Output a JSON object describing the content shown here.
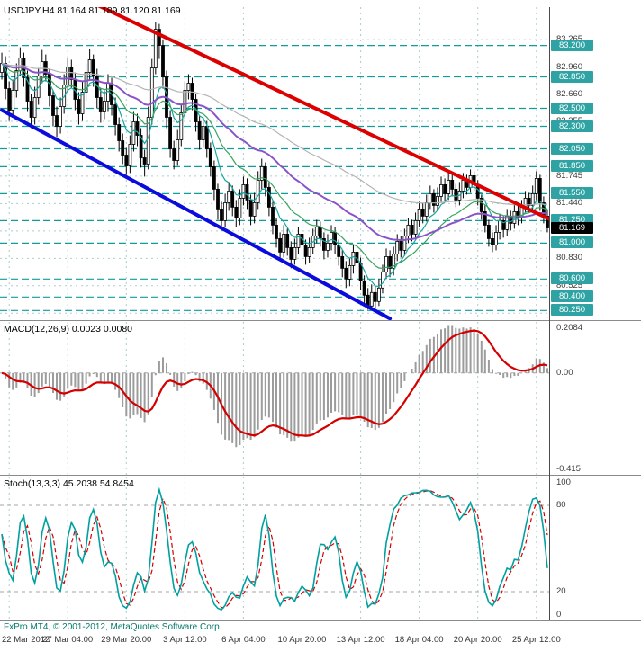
{
  "footer": {
    "copyright": "FxPro MT4, © 2001-2012, MetaQuotes Software Corp."
  },
  "colors": {
    "background": "#ffffff",
    "grid": "#a9cdcd",
    "level_line": "#0f9d9d",
    "badge": "#2fa3a3",
    "current_badge": "#000000",
    "bull": "#ffffff",
    "bear": "#000000",
    "candle_outline": "#000000",
    "trend_resistance": "#dd0000",
    "trend_support": "#0b0bdc",
    "macd_histogram": "#9c9c9c",
    "macd_signal": "#d40000",
    "stoch_main": "#00a0a0",
    "stoch_signal": "#d40000",
    "copyright": "#007a6a"
  },
  "chart_data": [
    {
      "type": "candlestick",
      "symbol": "USDJPY",
      "timeframe": "H4",
      "title": "USDJPY,H4 81.164 81.189 81.120 81.169",
      "quote": {
        "open": 81.164,
        "high": 81.189,
        "low": 81.12,
        "close": 81.169
      },
      "ylim": [
        80.143,
        83.626
      ],
      "y_ticks": [
        {
          "v": 83.265,
          "t": "83.265"
        },
        {
          "v": 82.96,
          "t": "82.960"
        },
        {
          "v": 82.66,
          "t": "82.660"
        },
        {
          "v": 82.355,
          "t": "82.355"
        },
        {
          "v": 82.05,
          "t": "82.050"
        },
        {
          "v": 81.745,
          "t": "81.745"
        },
        {
          "v": 81.44,
          "t": "81.440"
        },
        {
          "v": 81.135,
          "t": "81.135"
        },
        {
          "v": 80.83,
          "t": "80.830"
        },
        {
          "v": 80.525,
          "t": "80.525"
        },
        {
          "v": 80.22,
          "t": "80.220"
        }
      ],
      "levels": [
        {
          "v": 83.2,
          "t": "83.200"
        },
        {
          "v": 82.85,
          "t": "82.850"
        },
        {
          "v": 82.5,
          "t": "82.500"
        },
        {
          "v": 82.3,
          "t": "82.300"
        },
        {
          "v": 82.05,
          "t": "82.050"
        },
        {
          "v": 81.85,
          "t": "81.850"
        },
        {
          "v": 81.55,
          "t": "81.550"
        },
        {
          "v": 81.25,
          "t": "81.250"
        },
        {
          "v": 81.0,
          "t": "81.000"
        },
        {
          "v": 80.6,
          "t": "80.600"
        },
        {
          "v": 80.4,
          "t": "80.400"
        },
        {
          "v": 80.25,
          "t": "80.250"
        }
      ],
      "current_price": {
        "v": 81.169,
        "t": "81.169"
      },
      "moving_averages": [
        {
          "period": 8,
          "color": "#18a6a0",
          "width": 1.2
        },
        {
          "period": 20,
          "color": "#3aa35c",
          "width": 1.2
        },
        {
          "period": 45,
          "color": "#8a54c8",
          "width": 2
        },
        {
          "period": 90,
          "color": "#b4b4b4",
          "width": 1.2
        }
      ],
      "trendlines": [
        {
          "name": "descending-resistance",
          "color": "#dd0000",
          "width": 4,
          "from": {
            "bar": 26,
            "price": 83.65
          },
          "to": {
            "bar": 152,
            "price": 81.22
          }
        },
        {
          "name": "descending-support",
          "color": "#0b0bdc",
          "width": 4,
          "from": {
            "bar": 0,
            "price": 82.48
          },
          "to": {
            "bar": 106,
            "price": 80.16
          }
        }
      ],
      "time_axis": {
        "labels": [
          "22 Mar 2012",
          "27 Mar 04:00",
          "29 Mar 20:00",
          "3 Apr 12:00",
          "6 Apr 04:00",
          "10 Apr 20:00",
          "13 Apr 12:00",
          "18 Apr 04:00",
          "20 Apr 20:00",
          "25 Apr 12:00"
        ],
        "bars": [
          2,
          18,
          34,
          50,
          66,
          82,
          98,
          114,
          130,
          146
        ]
      },
      "candles": [
        [
          82.9,
          83.12,
          82.82,
          83.0
        ],
        [
          83.0,
          83.08,
          82.6,
          82.72
        ],
        [
          82.72,
          82.8,
          82.36,
          82.48
        ],
        [
          82.48,
          82.82,
          82.4,
          82.7
        ],
        [
          82.7,
          83.0,
          82.62,
          82.92
        ],
        [
          82.92,
          83.18,
          82.86,
          83.06
        ],
        [
          83.06,
          83.12,
          82.74,
          82.84
        ],
        [
          82.84,
          82.92,
          82.46,
          82.58
        ],
        [
          82.58,
          82.66,
          82.28,
          82.4
        ],
        [
          82.4,
          82.74,
          82.32,
          82.62
        ],
        [
          82.62,
          82.95,
          82.54,
          82.86
        ],
        [
          82.86,
          83.15,
          82.78,
          83.02
        ],
        [
          83.02,
          83.1,
          82.8,
          82.88
        ],
        [
          82.88,
          82.94,
          82.52,
          82.64
        ],
        [
          82.64,
          82.7,
          82.3,
          82.42
        ],
        [
          82.42,
          82.52,
          82.18,
          82.3
        ],
        [
          82.3,
          82.62,
          82.22,
          82.52
        ],
        [
          82.52,
          82.88,
          82.44,
          82.76
        ],
        [
          82.76,
          83.06,
          82.68,
          82.96
        ],
        [
          82.96,
          83.04,
          82.72,
          82.82
        ],
        [
          82.82,
          82.9,
          82.48,
          82.6
        ],
        [
          82.6,
          82.68,
          82.32,
          82.44
        ],
        [
          82.44,
          82.8,
          82.36,
          82.68
        ],
        [
          82.68,
          83.0,
          82.58,
          82.9
        ],
        [
          82.9,
          83.16,
          82.82,
          83.04
        ],
        [
          83.04,
          83.1,
          82.74,
          82.86
        ],
        [
          82.86,
          82.94,
          82.5,
          82.62
        ],
        [
          82.62,
          82.72,
          82.34,
          82.46
        ],
        [
          82.46,
          82.7,
          82.38,
          82.58
        ],
        [
          82.58,
          82.88,
          82.46,
          82.78
        ],
        [
          82.78,
          82.84,
          82.42,
          82.54
        ],
        [
          82.54,
          82.62,
          82.2,
          82.32
        ],
        [
          82.32,
          82.4,
          82.02,
          82.14
        ],
        [
          82.14,
          82.22,
          81.88,
          81.98
        ],
        [
          81.98,
          82.06,
          81.76,
          81.86
        ],
        [
          81.86,
          82.2,
          81.78,
          82.1
        ],
        [
          82.1,
          82.46,
          82.02,
          82.35
        ],
        [
          82.35,
          82.44,
          82.08,
          82.2
        ],
        [
          82.2,
          82.28,
          81.84,
          81.95
        ],
        [
          81.95,
          82.04,
          81.74,
          81.88
        ],
        [
          81.88,
          82.52,
          81.82,
          82.4
        ],
        [
          82.4,
          83.05,
          82.32,
          82.95
        ],
        [
          82.95,
          83.46,
          82.88,
          83.38
        ],
        [
          83.38,
          83.44,
          83.05,
          83.2
        ],
        [
          83.2,
          83.26,
          82.72,
          82.85
        ],
        [
          82.85,
          82.92,
          82.28,
          82.4
        ],
        [
          82.4,
          82.48,
          81.95,
          82.05
        ],
        [
          82.05,
          82.14,
          81.82,
          81.92
        ],
        [
          81.92,
          82.26,
          81.86,
          82.15
        ],
        [
          82.15,
          82.55,
          82.08,
          82.45
        ],
        [
          82.45,
          82.8,
          82.38,
          82.7
        ],
        [
          82.7,
          82.88,
          82.6,
          82.78
        ],
        [
          82.78,
          82.84,
          82.48,
          82.6
        ],
        [
          82.6,
          82.66,
          82.24,
          82.35
        ],
        [
          82.35,
          82.42,
          82.04,
          82.15
        ],
        [
          82.15,
          82.4,
          82.06,
          82.3
        ],
        [
          82.3,
          82.36,
          81.95,
          82.05
        ],
        [
          82.05,
          82.12,
          81.74,
          81.85
        ],
        [
          81.85,
          81.92,
          81.48,
          81.6
        ],
        [
          81.6,
          81.66,
          81.26,
          81.38
        ],
        [
          81.38,
          81.46,
          81.14,
          81.25
        ],
        [
          81.25,
          81.55,
          81.18,
          81.45
        ],
        [
          81.45,
          81.68,
          81.36,
          81.58
        ],
        [
          81.58,
          81.64,
          81.3,
          81.4
        ],
        [
          81.4,
          81.48,
          81.18,
          81.28
        ],
        [
          81.28,
          81.6,
          81.2,
          81.5
        ],
        [
          81.5,
          81.74,
          81.42,
          81.65
        ],
        [
          81.65,
          81.72,
          81.38,
          81.48
        ],
        [
          81.48,
          81.54,
          81.2,
          81.3
        ],
        [
          81.3,
          81.56,
          81.22,
          81.45
        ],
        [
          81.45,
          81.8,
          81.38,
          81.7
        ],
        [
          81.7,
          81.94,
          81.6,
          81.85
        ],
        [
          81.85,
          81.9,
          81.52,
          81.62
        ],
        [
          81.62,
          81.68,
          81.3,
          81.4
        ],
        [
          81.4,
          81.46,
          81.1,
          81.2
        ],
        [
          81.2,
          81.28,
          80.95,
          81.05
        ],
        [
          81.05,
          81.12,
          80.8,
          80.9
        ],
        [
          80.9,
          81.2,
          80.84,
          81.1
        ],
        [
          81.1,
          81.16,
          80.86,
          80.95
        ],
        [
          80.95,
          81.02,
          80.72,
          80.82
        ],
        [
          80.82,
          81.05,
          80.76,
          80.95
        ],
        [
          80.95,
          81.18,
          80.88,
          81.1
        ],
        [
          81.1,
          81.16,
          80.88,
          80.98
        ],
        [
          80.98,
          81.04,
          80.76,
          80.85
        ],
        [
          80.85,
          81.06,
          80.78,
          80.95
        ],
        [
          80.95,
          81.16,
          80.88,
          81.08
        ],
        [
          81.08,
          81.26,
          81.0,
          81.18
        ],
        [
          81.18,
          81.24,
          80.96,
          81.05
        ],
        [
          81.05,
          81.12,
          80.82,
          80.92
        ],
        [
          80.92,
          81.1,
          80.84,
          81.0
        ],
        [
          81.0,
          81.2,
          80.92,
          81.12
        ],
        [
          81.12,
          81.18,
          80.88,
          80.98
        ],
        [
          80.98,
          81.04,
          80.75,
          80.85
        ],
        [
          80.85,
          80.92,
          80.62,
          80.72
        ],
        [
          80.72,
          80.8,
          80.5,
          80.6
        ],
        [
          80.6,
          80.84,
          80.52,
          80.75
        ],
        [
          80.75,
          80.98,
          80.66,
          80.9
        ],
        [
          80.9,
          80.96,
          80.68,
          80.78
        ],
        [
          80.78,
          80.84,
          80.48,
          80.58
        ],
        [
          80.58,
          80.64,
          80.32,
          80.42
        ],
        [
          80.42,
          80.5,
          80.26,
          80.3
        ],
        [
          80.3,
          80.54,
          80.26,
          80.45
        ],
        [
          80.45,
          80.52,
          80.28,
          80.35
        ],
        [
          80.35,
          80.6,
          80.3,
          80.5
        ],
        [
          80.5,
          80.76,
          80.44,
          80.68
        ],
        [
          80.68,
          80.94,
          80.6,
          80.85
        ],
        [
          80.85,
          80.92,
          80.62,
          80.72
        ],
        [
          80.72,
          80.96,
          80.64,
          80.88
        ],
        [
          80.88,
          81.1,
          80.8,
          81.02
        ],
        [
          81.02,
          81.08,
          80.84,
          80.92
        ],
        [
          80.92,
          81.16,
          80.86,
          81.08
        ],
        [
          81.08,
          81.28,
          81.0,
          81.2
        ],
        [
          81.2,
          81.26,
          81.02,
          81.1
        ],
        [
          81.1,
          81.34,
          81.04,
          81.25
        ],
        [
          81.25,
          81.46,
          81.18,
          81.38
        ],
        [
          81.38,
          81.44,
          81.22,
          81.3
        ],
        [
          81.3,
          81.54,
          81.24,
          81.45
        ],
        [
          81.45,
          81.64,
          81.38,
          81.55
        ],
        [
          81.55,
          81.6,
          81.34,
          81.42
        ],
        [
          81.42,
          81.62,
          81.36,
          81.52
        ],
        [
          81.52,
          81.74,
          81.46,
          81.65
        ],
        [
          81.65,
          81.72,
          81.46,
          81.55
        ],
        [
          81.55,
          81.78,
          81.48,
          81.7
        ],
        [
          81.7,
          81.76,
          81.52,
          81.6
        ],
        [
          81.6,
          81.66,
          81.4,
          81.48
        ],
        [
          81.48,
          81.68,
          81.42,
          81.58
        ],
        [
          81.58,
          81.78,
          81.5,
          81.7
        ],
        [
          81.7,
          81.76,
          81.54,
          81.62
        ],
        [
          81.62,
          81.82,
          81.56,
          81.75
        ],
        [
          81.75,
          81.8,
          81.58,
          81.65
        ],
        [
          81.65,
          81.7,
          81.42,
          81.5
        ],
        [
          81.5,
          81.56,
          81.26,
          81.35
        ],
        [
          81.35,
          81.42,
          81.12,
          81.2
        ],
        [
          81.2,
          81.26,
          80.96,
          81.05
        ],
        [
          81.05,
          81.12,
          80.9,
          80.98
        ],
        [
          80.98,
          81.2,
          80.92,
          81.12
        ],
        [
          81.12,
          81.32,
          81.04,
          81.25
        ],
        [
          81.25,
          81.3,
          81.06,
          81.15
        ],
        [
          81.15,
          81.38,
          81.08,
          81.3
        ],
        [
          81.3,
          81.36,
          81.14,
          81.22
        ],
        [
          81.22,
          81.44,
          81.16,
          81.35
        ],
        [
          81.35,
          81.42,
          81.2,
          81.28
        ],
        [
          81.28,
          81.48,
          81.22,
          81.4
        ],
        [
          81.4,
          81.58,
          81.34,
          81.5
        ],
        [
          81.5,
          81.56,
          81.34,
          81.42
        ],
        [
          81.42,
          81.64,
          81.36,
          81.55
        ],
        [
          81.55,
          81.8,
          81.48,
          81.72
        ],
        [
          81.72,
          81.76,
          81.36,
          81.45
        ],
        [
          81.45,
          81.52,
          81.22,
          81.3
        ],
        [
          81.3,
          81.38,
          81.12,
          81.169
        ]
      ]
    },
    {
      "type": "macd",
      "label": "MACD(12,26,9) 0.0023 0.0080",
      "params": {
        "fast": 12,
        "slow": 26,
        "signal": 9
      },
      "display_values": [
        0.0023,
        0.008
      ],
      "ylim": [
        -0.415,
        0.2084
      ],
      "zero_level": 0,
      "y_ticks": [
        {
          "v": 0.2084,
          "t": "0.2084"
        },
        {
          "v": 0,
          "t": "0.00"
        },
        {
          "v": -0.415,
          "t": "-0.415"
        }
      ]
    },
    {
      "type": "stochastic",
      "label": "Stoch(13,3,3) 45.2038 54.8454",
      "params": {
        "k": 13,
        "slowing": 3,
        "d": 3
      },
      "display_values": [
        45.2038,
        54.8454
      ],
      "ylim": [
        0,
        100
      ],
      "levels": [
        80,
        20
      ],
      "y_ticks": [
        {
          "v": 100,
          "t": "100"
        },
        {
          "v": 80,
          "t": "80"
        },
        {
          "v": 20,
          "t": "20"
        },
        {
          "v": 0,
          "t": "0"
        }
      ]
    }
  ]
}
